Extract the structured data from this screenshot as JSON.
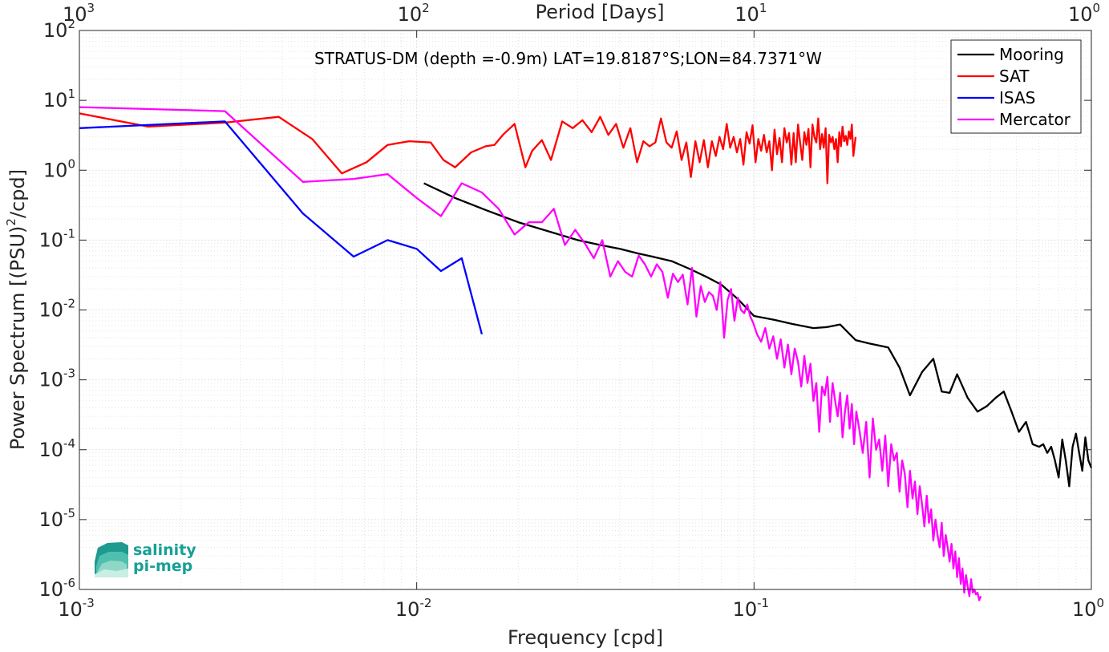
{
  "chart_data": {
    "type": "line",
    "title": "STRATUS-DM (depth =-0.9m) LAT=19.8187°S;LON=84.7371°W",
    "xlabel": "Frequency [cpd]",
    "ylabel_main": "Power Spectrum [(PSU)",
    "ylabel_sup": "2",
    "ylabel_end": "/cpd]",
    "top_xlabel": "Period [Days]",
    "x_scale": "log",
    "y_scale": "log",
    "xlim": [
      0.001,
      1
    ],
    "ylim": [
      1e-06,
      100
    ],
    "grid": true,
    "legend_position": "top-right",
    "x_ticks": [
      {
        "value": 0.001,
        "base": "10",
        "exp": "-3"
      },
      {
        "value": 0.01,
        "base": "10",
        "exp": "-2"
      },
      {
        "value": 0.1,
        "base": "10",
        "exp": "-1"
      },
      {
        "value": 1,
        "base": "10",
        "exp": "0"
      }
    ],
    "y_ticks": [
      {
        "value": 100,
        "base": "10",
        "exp": "2"
      },
      {
        "value": 10,
        "base": "10",
        "exp": "1"
      },
      {
        "value": 1,
        "base": "10",
        "exp": "0"
      },
      {
        "value": 0.1,
        "base": "10",
        "exp": "-1"
      },
      {
        "value": 0.01,
        "base": "10",
        "exp": "-2"
      },
      {
        "value": 0.001,
        "base": "10",
        "exp": "-3"
      },
      {
        "value": 0.0001,
        "base": "10",
        "exp": "-4"
      },
      {
        "value": 1e-05,
        "base": "10",
        "exp": "-5"
      },
      {
        "value": 1e-06,
        "base": "10",
        "exp": "-6"
      }
    ],
    "top_ticks": [
      {
        "freq": 0.001,
        "base": "10",
        "exp": "3"
      },
      {
        "freq": 0.01,
        "base": "10",
        "exp": "2"
      },
      {
        "freq": 0.1,
        "base": "10",
        "exp": "1"
      },
      {
        "freq": 1,
        "base": "10",
        "exp": "0"
      }
    ],
    "series": [
      {
        "name": "Mooring",
        "color": "#000000",
        "x": [
          0.0105,
          0.013,
          0.016,
          0.02,
          0.025,
          0.03,
          0.035,
          0.04,
          0.045,
          0.05,
          0.057,
          0.065,
          0.072,
          0.08,
          0.09,
          0.1,
          0.115,
          0.13,
          0.15,
          0.165,
          0.18,
          0.2,
          0.22,
          0.25,
          0.27,
          0.29,
          0.315,
          0.34,
          0.36,
          0.38,
          0.4,
          0.43,
          0.46,
          0.49,
          0.52,
          0.55,
          0.58,
          0.61,
          0.64,
          0.67,
          0.7,
          0.72,
          0.74,
          0.76,
          0.78,
          0.8,
          0.82,
          0.84,
          0.86,
          0.88,
          0.9,
          0.92,
          0.94,
          0.96,
          0.98,
          1.0
        ],
        "values": [
          0.65,
          0.4,
          0.27,
          0.18,
          0.13,
          0.1,
          0.085,
          0.075,
          0.065,
          0.058,
          0.05,
          0.038,
          0.03,
          0.023,
          0.014,
          0.0082,
          0.0072,
          0.0063,
          0.0055,
          0.0057,
          0.0062,
          0.0037,
          0.0033,
          0.0029,
          0.0015,
          0.0006,
          0.0013,
          0.002,
          0.00068,
          0.00065,
          0.0012,
          0.00055,
          0.00035,
          0.00042,
          0.00055,
          0.00068,
          0.00035,
          0.00018,
          0.00025,
          0.00012,
          0.00011,
          0.00012,
          9e-05,
          0.00011,
          7e-05,
          4e-05,
          0.00014,
          7e-05,
          3e-05,
          0.00011,
          0.00017,
          9e-05,
          5e-05,
          0.00015,
          7e-05,
          5.5e-05
        ]
      },
      {
        "name": "SAT",
        "color": "#ff0000",
        "x": [
          0.001,
          0.0016,
          0.0027,
          0.0039,
          0.0049,
          0.006,
          0.0071,
          0.0082,
          0.0095,
          0.011,
          0.012,
          0.013,
          0.0145,
          0.016,
          0.017,
          0.018,
          0.0195,
          0.021,
          0.022,
          0.0235,
          0.025,
          0.027,
          0.029,
          0.031,
          0.033,
          0.035,
          0.037,
          0.039,
          0.041,
          0.043,
          0.045,
          0.047,
          0.049,
          0.051,
          0.053,
          0.055,
          0.057,
          0.059,
          0.061,
          0.063,
          0.065,
          0.067,
          0.069,
          0.071,
          0.073,
          0.075,
          0.077,
          0.079,
          0.081,
          0.083,
          0.085,
          0.087,
          0.089,
          0.091,
          0.093,
          0.095,
          0.097,
          0.099,
          0.101,
          0.103,
          0.105,
          0.107,
          0.109,
          0.111,
          0.113,
          0.115,
          0.117,
          0.119,
          0.121,
          0.123,
          0.125,
          0.127,
          0.129,
          0.131,
          0.133,
          0.135,
          0.137,
          0.139,
          0.141,
          0.143,
          0.145,
          0.147,
          0.149,
          0.151,
          0.153,
          0.155,
          0.157,
          0.159,
          0.161,
          0.163,
          0.165,
          0.167,
          0.169,
          0.171,
          0.173,
          0.175,
          0.177,
          0.179,
          0.181,
          0.183,
          0.185,
          0.187,
          0.189,
          0.191,
          0.193,
          0.195,
          0.197,
          0.2
        ],
        "values": [
          6.5,
          4.2,
          4.8,
          5.8,
          2.8,
          0.9,
          1.3,
          2.3,
          2.6,
          2.5,
          1.4,
          1.1,
          1.8,
          2.2,
          2.3,
          3.2,
          4.6,
          1.1,
          1.9,
          2.7,
          1.4,
          5.0,
          4.0,
          5.2,
          3.5,
          5.8,
          3.2,
          4.6,
          2.1,
          4.0,
          1.3,
          2.6,
          2.2,
          2.5,
          5.5,
          2.5,
          2.1,
          3.6,
          1.4,
          2.5,
          0.8,
          2.6,
          1.3,
          2.7,
          1.1,
          2.6,
          1.6,
          3.0,
          2.0,
          4.6,
          2.1,
          3.0,
          1.8,
          2.8,
          1.2,
          3.5,
          2.4,
          4.4,
          1.3,
          2.8,
          1.9,
          3.2,
          1.8,
          2.6,
          1.0,
          3.8,
          1.7,
          2.9,
          1.3,
          4.0,
          2.5,
          3.4,
          1.2,
          3.4,
          1.3,
          4.5,
          2.5,
          1.4,
          3.5,
          2.3,
          3.9,
          1.1,
          4.5,
          3.0,
          2.5,
          5.5,
          2.0,
          3.3,
          2.1,
          4.0,
          0.65,
          3.2,
          2.5,
          3.0,
          2.0,
          2.8,
          1.3,
          3.5,
          2.2,
          4.2,
          2.6,
          3.1,
          2.3,
          3.6,
          2.8,
          4.5,
          1.6,
          3.0
        ]
      },
      {
        "name": "ISAS",
        "color": "#0000ff",
        "x": [
          0.001,
          0.0027,
          0.0046,
          0.0065,
          0.0082,
          0.01,
          0.0118,
          0.0136,
          0.0156
        ],
        "values": [
          4.0,
          5.0,
          0.24,
          0.058,
          0.1,
          0.075,
          0.036,
          0.055,
          0.0045
        ]
      },
      {
        "name": "Mercator",
        "color": "#ff00ff",
        "x": [
          0.001,
          0.0027,
          0.0046,
          0.0065,
          0.0082,
          0.01,
          0.0118,
          0.0136,
          0.0156,
          0.0175,
          0.0195,
          0.0215,
          0.0235,
          0.0255,
          0.0275,
          0.0295,
          0.0315,
          0.0335,
          0.0355,
          0.0375,
          0.0395,
          0.0415,
          0.0435,
          0.0455,
          0.0475,
          0.0495,
          0.0515,
          0.0535,
          0.0555,
          0.0575,
          0.0595,
          0.0615,
          0.0635,
          0.0655,
          0.0675,
          0.0695,
          0.0715,
          0.0735,
          0.0755,
          0.0775,
          0.0795,
          0.0815,
          0.0835,
          0.0855,
          0.0875,
          0.0895,
          0.0915,
          0.0935,
          0.0955,
          0.0975,
          0.0995,
          0.102,
          0.105,
          0.108,
          0.111,
          0.114,
          0.117,
          0.12,
          0.123,
          0.126,
          0.129,
          0.132,
          0.135,
          0.138,
          0.141,
          0.144,
          0.147,
          0.15,
          0.153,
          0.156,
          0.159,
          0.162,
          0.165,
          0.168,
          0.171,
          0.174,
          0.177,
          0.18,
          0.183,
          0.186,
          0.189,
          0.192,
          0.195,
          0.198,
          0.201,
          0.205,
          0.21,
          0.215,
          0.22,
          0.225,
          0.23,
          0.235,
          0.24,
          0.245,
          0.25,
          0.255,
          0.26,
          0.265,
          0.27,
          0.275,
          0.28,
          0.285,
          0.29,
          0.295,
          0.3,
          0.305,
          0.31,
          0.315,
          0.32,
          0.325,
          0.33,
          0.335,
          0.34,
          0.345,
          0.35,
          0.355,
          0.36,
          0.365,
          0.37,
          0.375,
          0.38,
          0.385,
          0.39,
          0.395,
          0.4,
          0.405,
          0.41,
          0.415,
          0.42,
          0.425,
          0.43,
          0.435,
          0.44,
          0.445,
          0.45,
          0.455,
          0.46,
          0.465,
          0.47
        ],
        "values": [
          8.0,
          7.0,
          0.68,
          0.75,
          0.88,
          0.4,
          0.22,
          0.65,
          0.48,
          0.28,
          0.12,
          0.18,
          0.18,
          0.28,
          0.085,
          0.14,
          0.09,
          0.055,
          0.1,
          0.03,
          0.05,
          0.035,
          0.03,
          0.06,
          0.045,
          0.03,
          0.045,
          0.035,
          0.015,
          0.033,
          0.025,
          0.032,
          0.012,
          0.04,
          0.008,
          0.022,
          0.013,
          0.018,
          0.016,
          0.01,
          0.025,
          0.004,
          0.014,
          0.02,
          0.007,
          0.015,
          0.01,
          0.009,
          0.012,
          0.008,
          0.0065,
          0.0045,
          0.0035,
          0.0055,
          0.0028,
          0.0042,
          0.002,
          0.0038,
          0.0015,
          0.0032,
          0.0012,
          0.0028,
          0.0018,
          0.0008,
          0.0022,
          0.0009,
          0.0017,
          0.0005,
          0.0009,
          0.00018,
          0.0008,
          0.0006,
          0.0011,
          0.00025,
          0.0009,
          0.0005,
          0.0003,
          0.00065,
          0.00015,
          0.00035,
          0.0006,
          0.0002,
          0.00045,
          0.00012,
          0.00035,
          0.0002,
          9e-05,
          0.00025,
          4e-05,
          0.00028,
          0.0001,
          0.00014,
          5e-05,
          0.00016,
          3e-05,
          0.00012,
          7e-05,
          9e-05,
          2.5e-05,
          7e-05,
          4.5e-05,
          1.5e-05,
          5e-05,
          2e-05,
          3.5e-05,
          1.2e-05,
          3e-05,
          1.6e-05,
          8e-06,
          2.2e-05,
          9e-06,
          1.4e-05,
          5e-06,
          1e-05,
          6e-06,
          4e-06,
          9e-06,
          3e-06,
          6e-06,
          4e-06,
          2.5e-06,
          4.5e-06,
          2e-06,
          3.5e-06,
          1.5e-06,
          2.8e-06,
          1.2e-06,
          2e-06,
          9e-07,
          1.6e-06,
          1.1e-06,
          8e-07,
          1.4e-06,
          9e-07,
          1e-06,
          8.5e-07,
          9e-07,
          7e-07,
          8e-07
        ]
      }
    ]
  },
  "logo": {
    "line1": "salinity",
    "line2": "pi-mep"
  },
  "colors": {
    "grid": "#e2e2e2",
    "axis": "#262626",
    "logo_teal": "#17a096"
  }
}
